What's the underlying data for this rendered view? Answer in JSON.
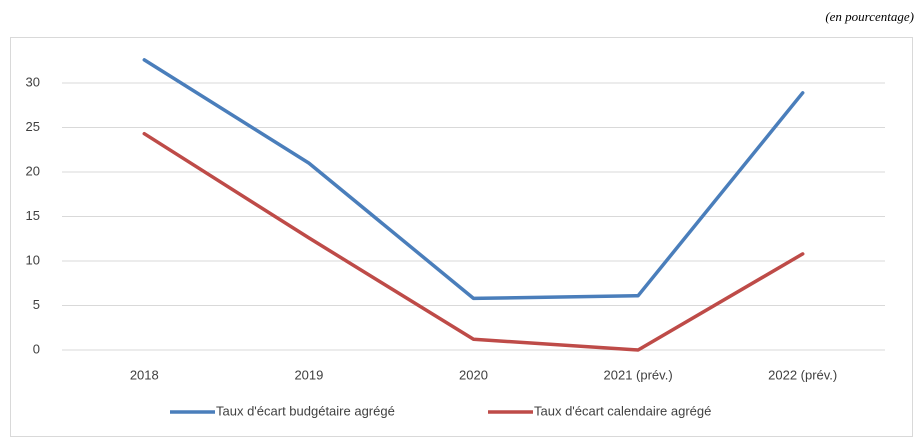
{
  "chart_data": {
    "type": "line",
    "annotation": "(en pourcentage)",
    "categories": [
      "2018",
      "2019",
      "2020",
      "2021 (prév.)",
      "2022 (prév.)"
    ],
    "series": [
      {
        "name": "Taux d'écart budgétaire agrégé",
        "color": "#4a7ebb",
        "values": [
          32.6,
          21.0,
          5.8,
          6.1,
          28.9
        ]
      },
      {
        "name": "Taux d'écart calendaire agrégé",
        "color": "#be4b48",
        "values": [
          24.3,
          12.6,
          1.2,
          0,
          10.8
        ]
      }
    ],
    "ylim": [
      0,
      35
    ],
    "yticks": [
      0,
      5,
      10,
      15,
      20,
      25,
      30
    ],
    "grid": true,
    "legend": "bottom"
  }
}
